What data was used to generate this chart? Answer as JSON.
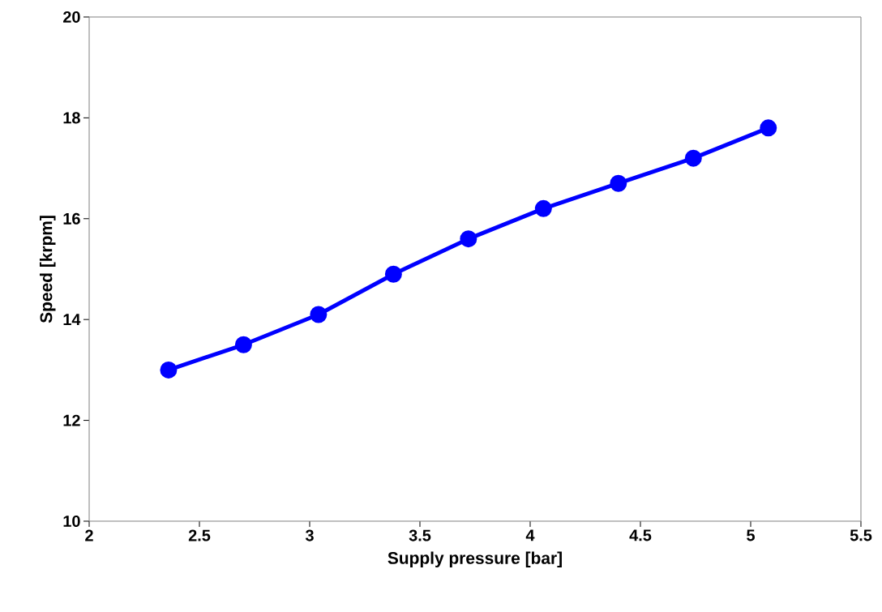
{
  "chart_data": {
    "type": "line",
    "xlabel": "Supply pressure [bar]",
    "ylabel": "Speed [krpm]",
    "x": [
      2.36,
      2.7,
      3.04,
      3.38,
      3.72,
      4.06,
      4.4,
      4.74,
      5.08
    ],
    "series": [
      {
        "color": "#0000ff",
        "values": [
          13.0,
          13.5,
          14.1,
          14.9,
          15.6,
          16.2,
          16.7,
          17.2,
          17.8
        ]
      }
    ],
    "xlim": [
      2,
      5.5
    ],
    "ylim": [
      10,
      20
    ],
    "xticks": [
      2,
      2.5,
      3,
      3.5,
      4,
      4.5,
      5,
      5.5
    ],
    "yticks": [
      10,
      12,
      14,
      16,
      18,
      20
    ],
    "grid": false,
    "legend": false,
    "marker": "circle",
    "line_style": "solid"
  }
}
